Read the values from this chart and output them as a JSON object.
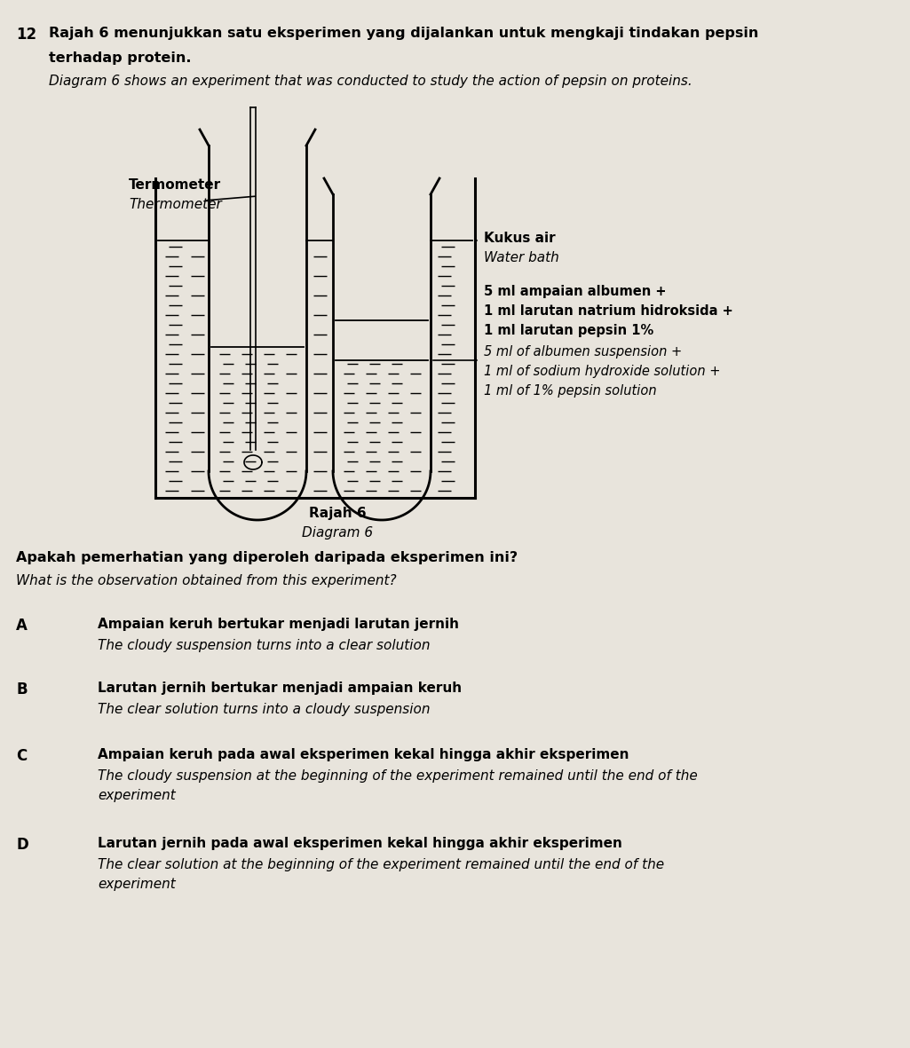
{
  "bg_color": "#e8e4dc",
  "question_number": "12",
  "title_malay": "Rajah 6 menunjukkan satu eksperimen yang dijalankan untuk mengkaji tindakan pepsin",
  "title_malay2": "terhadap protein.",
  "title_english": "Diagram 6 shows an experiment that was conducted to study the action of pepsin on proteins.",
  "label_thermometer_malay": "Termometer",
  "label_thermometer_english": "Thermometer",
  "label_waterbath_malay": "Kukus air",
  "label_waterbath_english": "Water bath",
  "label_contents_malay1": "5 ml ampaian albumen +",
  "label_contents_malay2": "1 ml larutan natrium hidroksida +",
  "label_contents_malay3": "1 ml larutan pepsin 1%",
  "label_contents_eng1": "5 ml of albumen suspension +",
  "label_contents_eng2": "1 ml of sodium hydroxide solution +",
  "label_contents_eng3": "1 ml of 1% pepsin solution",
  "diagram_label_malay": "Rajah 6",
  "diagram_label_english": "Diagram 6",
  "question_text_malay": "Apakah pemerhatian yang diperoleh daripada eksperimen ini?",
  "question_text_english": "What is the observation obtained from this experiment?",
  "option_A_malay": "Ampaian keruh bertukar menjadi larutan jernih",
  "option_A_english": "The cloudy suspension turns into a clear solution",
  "option_B_malay": "Larutan jernih bertukar menjadi ampaian keruh",
  "option_B_english": "The clear solution turns into a cloudy suspension",
  "option_C_malay": "Ampaian keruh pada awal eksperimen kekal hingga akhir eksperimen",
  "option_C_english": "The cloudy suspension at the beginning of the experiment remained until the end of the",
  "option_C_english2": "experiment",
  "option_D_malay": "Larutan jernih pada awal eksperimen kekal hingga akhir eksperimen",
  "option_D_english": "The clear solution at the beginning of the experiment remained until the end of the",
  "option_D_english2": "experiment"
}
